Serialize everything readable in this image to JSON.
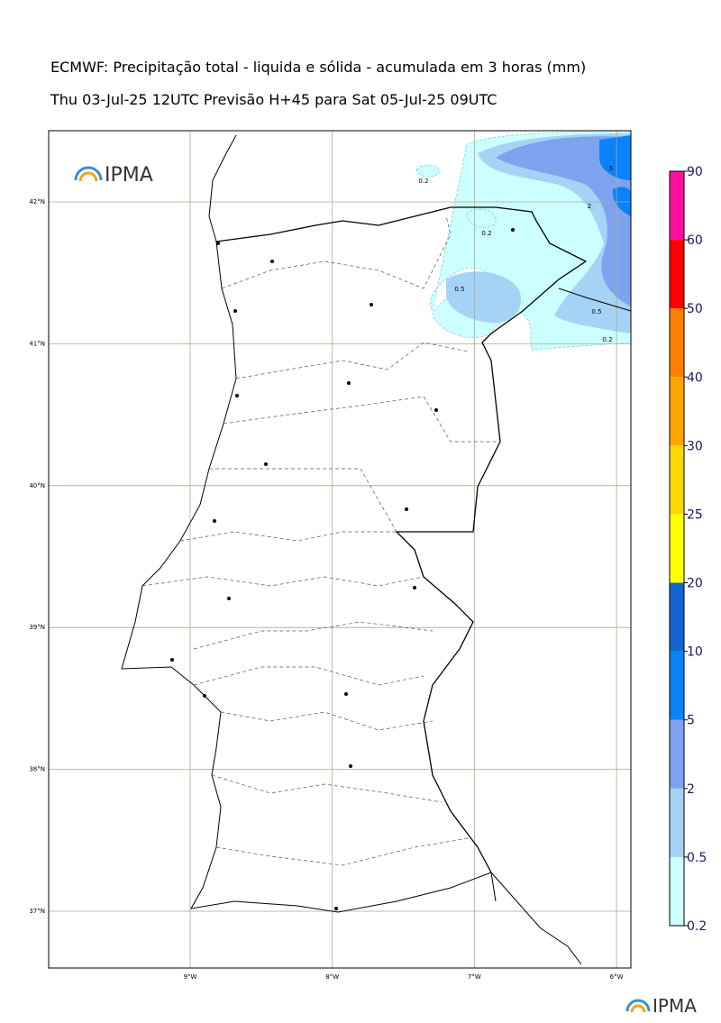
{
  "header": {
    "title": "ECMWF: Precipitação total - liquida e sólida - acumulada em 3 horas (mm)",
    "subtitle": "Thu 03-Jul-25 12UTC Previsão H+45 para Sat 05-Jul-25 09UTC"
  },
  "logo": "IPMA",
  "grid": {
    "lons": [
      {
        "value": -9,
        "label": "9°W"
      },
      {
        "value": -8,
        "label": "8°W"
      },
      {
        "value": -7,
        "label": "7°W"
      },
      {
        "value": -6,
        "label": "6°W"
      }
    ],
    "lats": [
      {
        "value": 42,
        "label": "42°N"
      },
      {
        "value": 41,
        "label": "41°N"
      },
      {
        "value": 40,
        "label": "40°N"
      },
      {
        "value": 39,
        "label": "39°N"
      },
      {
        "value": 38,
        "label": "38°N"
      },
      {
        "value": 37,
        "label": "37°N"
      }
    ]
  },
  "colorbar": {
    "levels": [
      0.2,
      0.5,
      2,
      5,
      10,
      20,
      25,
      30,
      40,
      50,
      60,
      90
    ],
    "colors": [
      "#ccffff",
      "#a6d2f5",
      "#7fa2ef",
      "#0a82fa",
      "#1464d2",
      "#ffff00",
      "#ffd700",
      "#ffa500",
      "#ff7f00",
      "#ff0000",
      "#ff10a0"
    ]
  },
  "contour_labels": [
    "0.2",
    "0.2",
    "0.5",
    "2",
    "5",
    "0.5",
    "0.2"
  ]
}
